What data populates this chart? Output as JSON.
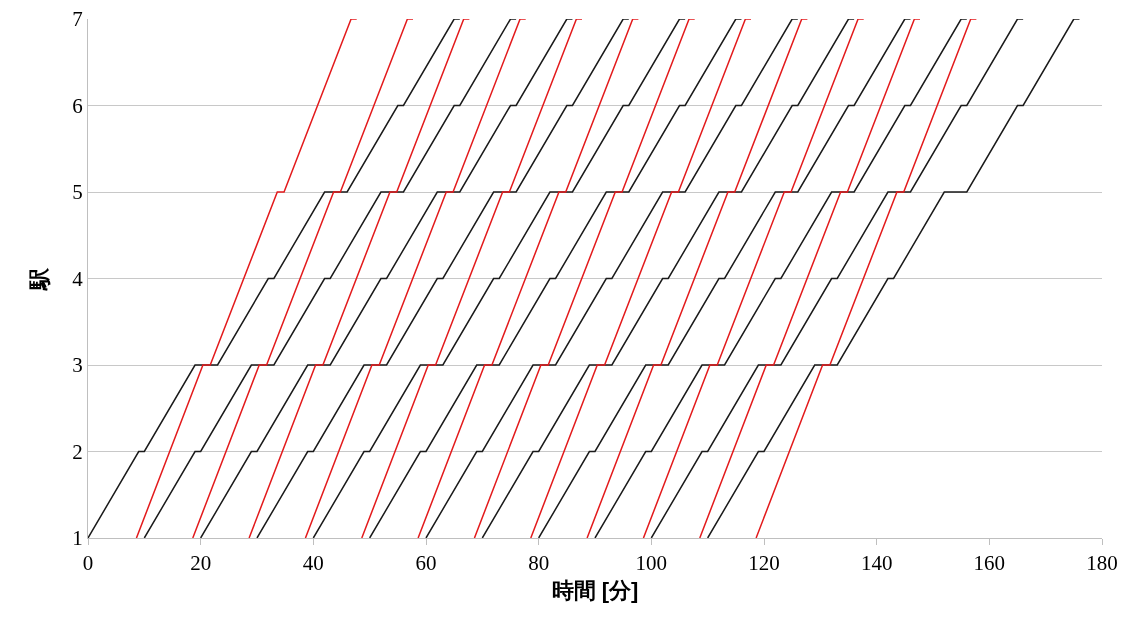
{
  "chart_data": {
    "type": "line",
    "xlabel": "時間 [分]",
    "ylabel": "駅",
    "xlim": [
      0,
      180
    ],
    "xticks": [
      0,
      20,
      40,
      60,
      80,
      100,
      120,
      140,
      160,
      180
    ],
    "ylim": [
      1,
      7
    ],
    "yticks": [
      1,
      2,
      3,
      4,
      5,
      6,
      7
    ],
    "grid": "y",
    "marker": "none",
    "line_style": "solid",
    "series": [
      {
        "color": "#1a1a1a",
        "x": [
          0,
          9,
          10,
          19,
          23,
          32,
          33,
          42,
          46,
          55,
          56,
          65,
          66
        ],
        "values": [
          1,
          2,
          2,
          3,
          3,
          4,
          4,
          5,
          5,
          6,
          6,
          7,
          7
        ]
      },
      {
        "color": "#e31a1c",
        "x": [
          8.6,
          20.4,
          21.7,
          33.6,
          34.8,
          46.7,
          47.7
        ],
        "values": [
          1,
          3,
          3,
          5,
          5,
          7,
          7
        ]
      },
      {
        "color": "#1a1a1a",
        "x": [
          10,
          19,
          20,
          29,
          33,
          42,
          43,
          52,
          56,
          65,
          66,
          75,
          76
        ],
        "values": [
          1,
          2,
          2,
          3,
          3,
          4,
          4,
          5,
          5,
          6,
          6,
          7,
          7
        ]
      },
      {
        "color": "#e31a1c",
        "x": [
          18.6,
          30.4,
          31.7,
          43.6,
          44.8,
          56.7,
          57.7
        ],
        "values": [
          1,
          3,
          3,
          5,
          5,
          7,
          7
        ]
      },
      {
        "color": "#1a1a1a",
        "x": [
          20,
          29,
          30,
          39,
          43,
          52,
          53,
          62,
          66,
          75,
          76,
          85,
          86
        ],
        "values": [
          1,
          2,
          2,
          3,
          3,
          4,
          4,
          5,
          5,
          6,
          6,
          7,
          7
        ]
      },
      {
        "color": "#e31a1c",
        "x": [
          28.6,
          40.4,
          41.7,
          53.6,
          54.8,
          66.7,
          67.7
        ],
        "values": [
          1,
          3,
          3,
          5,
          5,
          7,
          7
        ]
      },
      {
        "color": "#1a1a1a",
        "x": [
          30,
          39,
          40,
          49,
          53,
          62,
          63,
          72,
          76,
          85,
          86,
          95,
          96
        ],
        "values": [
          1,
          2,
          2,
          3,
          3,
          4,
          4,
          5,
          5,
          6,
          6,
          7,
          7
        ]
      },
      {
        "color": "#e31a1c",
        "x": [
          38.6,
          50.4,
          51.7,
          63.6,
          64.8,
          76.7,
          77.7
        ],
        "values": [
          1,
          3,
          3,
          5,
          5,
          7,
          7
        ]
      },
      {
        "color": "#1a1a1a",
        "x": [
          40,
          49,
          50,
          59,
          63,
          72,
          73,
          82,
          86,
          95,
          96,
          105,
          106
        ],
        "values": [
          1,
          2,
          2,
          3,
          3,
          4,
          4,
          5,
          5,
          6,
          6,
          7,
          7
        ]
      },
      {
        "color": "#e31a1c",
        "x": [
          48.6,
          60.4,
          61.7,
          73.6,
          74.8,
          86.7,
          87.7
        ],
        "values": [
          1,
          3,
          3,
          5,
          5,
          7,
          7
        ]
      },
      {
        "color": "#1a1a1a",
        "x": [
          50,
          59,
          60,
          69,
          73,
          82,
          83,
          92,
          96,
          105,
          106,
          115,
          116
        ],
        "values": [
          1,
          2,
          2,
          3,
          3,
          4,
          4,
          5,
          5,
          6,
          6,
          7,
          7
        ]
      },
      {
        "color": "#e31a1c",
        "x": [
          58.6,
          70.4,
          71.7,
          83.6,
          84.8,
          96.7,
          97.7
        ],
        "values": [
          1,
          3,
          3,
          5,
          5,
          7,
          7
        ]
      },
      {
        "color": "#1a1a1a",
        "x": [
          60,
          69,
          70,
          79,
          83,
          92,
          93,
          102,
          106,
          115,
          116,
          125,
          126
        ],
        "values": [
          1,
          2,
          2,
          3,
          3,
          4,
          4,
          5,
          5,
          6,
          6,
          7,
          7
        ]
      },
      {
        "color": "#e31a1c",
        "x": [
          68.6,
          80.4,
          81.7,
          93.6,
          94.8,
          106.7,
          107.7
        ],
        "values": [
          1,
          3,
          3,
          5,
          5,
          7,
          7
        ]
      },
      {
        "color": "#1a1a1a",
        "x": [
          70,
          79,
          80,
          89,
          93,
          102,
          103,
          112,
          116,
          125,
          126,
          135,
          136
        ],
        "values": [
          1,
          2,
          2,
          3,
          3,
          4,
          4,
          5,
          5,
          6,
          6,
          7,
          7
        ]
      },
      {
        "color": "#e31a1c",
        "x": [
          78.6,
          90.4,
          91.7,
          103.6,
          104.8,
          116.7,
          117.7
        ],
        "values": [
          1,
          3,
          3,
          5,
          5,
          7,
          7
        ]
      },
      {
        "color": "#1a1a1a",
        "x": [
          80,
          89,
          90,
          99,
          103,
          112,
          113,
          122,
          126,
          135,
          136,
          145,
          146
        ],
        "values": [
          1,
          2,
          2,
          3,
          3,
          4,
          4,
          5,
          5,
          6,
          6,
          7,
          7
        ]
      },
      {
        "color": "#e31a1c",
        "x": [
          88.6,
          100.4,
          101.7,
          113.6,
          114.8,
          126.7,
          127.7
        ],
        "values": [
          1,
          3,
          3,
          5,
          5,
          7,
          7
        ]
      },
      {
        "color": "#1a1a1a",
        "x": [
          90,
          99,
          100,
          109,
          113,
          122,
          123,
          132,
          136,
          145,
          146,
          155,
          156
        ],
        "values": [
          1,
          2,
          2,
          3,
          3,
          4,
          4,
          5,
          5,
          6,
          6,
          7,
          7
        ]
      },
      {
        "color": "#e31a1c",
        "x": [
          98.6,
          110.4,
          111.7,
          123.6,
          124.8,
          136.7,
          137.7
        ],
        "values": [
          1,
          3,
          3,
          5,
          5,
          7,
          7
        ]
      },
      {
        "color": "#1a1a1a",
        "x": [
          100,
          109,
          110,
          119,
          123,
          132,
          133,
          142,
          146,
          155,
          156,
          165,
          166
        ],
        "values": [
          1,
          2,
          2,
          3,
          3,
          4,
          4,
          5,
          5,
          6,
          6,
          7,
          7
        ]
      },
      {
        "color": "#e31a1c",
        "x": [
          108.6,
          120.4,
          121.7,
          133.6,
          134.8,
          146.7,
          147.7
        ],
        "values": [
          1,
          3,
          3,
          5,
          5,
          7,
          7
        ]
      },
      {
        "color": "#1a1a1a",
        "x": [
          110,
          119,
          120,
          129,
          133,
          142,
          143,
          152,
          156,
          165,
          166,
          175,
          176
        ],
        "values": [
          1,
          2,
          2,
          3,
          3,
          4,
          4,
          5,
          5,
          6,
          6,
          7,
          7
        ]
      },
      {
        "color": "#e31a1c",
        "x": [
          118.6,
          130.4,
          131.7,
          143.6,
          144.8,
          156.7,
          157.7
        ],
        "values": [
          1,
          3,
          3,
          5,
          5,
          7,
          7
        ]
      }
    ]
  }
}
